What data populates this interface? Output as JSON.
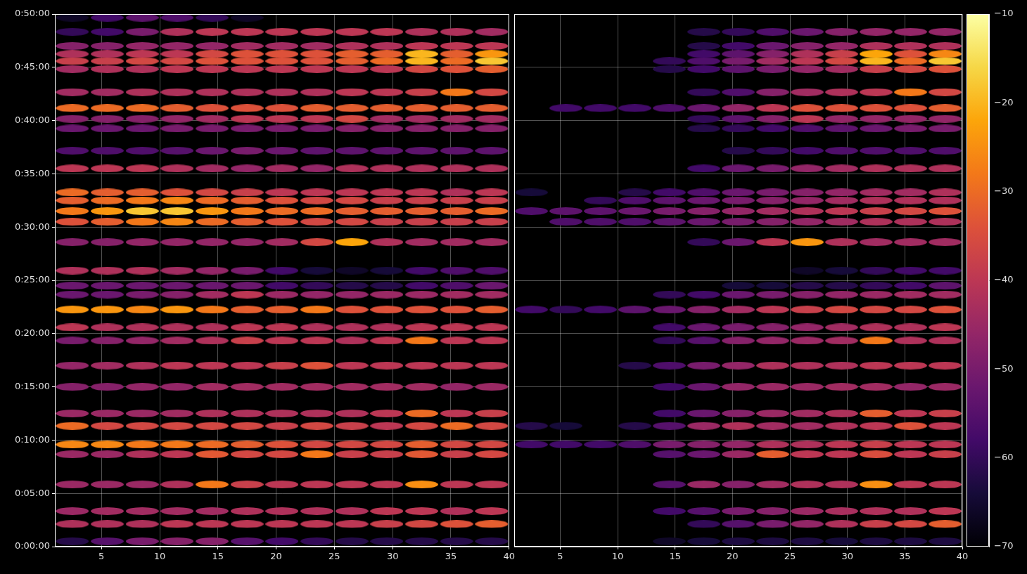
{
  "chart_data": [
    {
      "type": "heatmap",
      "grid": true,
      "xlim": [
        1,
        40
      ],
      "xticks": [
        5,
        10,
        15,
        20,
        25,
        30,
        35,
        40
      ],
      "ylim": [
        0,
        3000
      ],
      "yticks": [
        {
          "value": 0,
          "label": "0:00:00"
        },
        {
          "value": 300,
          "label": "0:05:00"
        },
        {
          "value": 600,
          "label": "0:10:00"
        },
        {
          "value": 900,
          "label": "0:15:00"
        },
        {
          "value": 1200,
          "label": "0:20:00"
        },
        {
          "value": 1500,
          "label": "0:25:00"
        },
        {
          "value": 1800,
          "label": "0:30:00"
        },
        {
          "value": 2100,
          "label": "0:35:00"
        },
        {
          "value": 2400,
          "label": "0:40:00"
        },
        {
          "value": 2700,
          "label": "0:45:00"
        },
        {
          "value": 3000,
          "label": "0:50:00"
        }
      ],
      "x": [
        2.5,
        5.5,
        8.5,
        11.5,
        14.5,
        17.5,
        20.5,
        23.5,
        26.5,
        29.5,
        32.5,
        35.5,
        38.5
      ],
      "y": [
        30,
        127,
        200,
        350,
        520,
        575,
        680,
        750,
        900,
        1020,
        1160,
        1235,
        1335,
        1420,
        1470,
        1555,
        1715,
        1830,
        1890,
        1950,
        1995,
        2130,
        2230,
        2355,
        2410,
        2470,
        2560,
        2690,
        2735,
        2775,
        2820,
        2900,
        2980
      ],
      "cells": [
        [
          -62,
          -55,
          -50,
          -48,
          -48,
          -55,
          -58,
          -60,
          -62,
          -62,
          -62,
          -62,
          -62
        ],
        [
          -42,
          -42,
          -42,
          -40,
          -40,
          -40,
          -40,
          -40,
          -40,
          -38,
          -36,
          -34,
          -32
        ],
        [
          -45,
          -44,
          -44,
          -44,
          -44,
          -42,
          -42,
          -42,
          -42,
          -40,
          -40,
          -42,
          -40
        ],
        [
          -45,
          -45,
          -45,
          -42,
          -28,
          -38,
          -40,
          -40,
          -40,
          -40,
          -25,
          -40,
          -40
        ],
        [
          -45,
          -45,
          -42,
          -40,
          -33,
          -36,
          -36,
          -28,
          -38,
          -38,
          -33,
          -38,
          -36
        ],
        [
          -26,
          -26,
          -28,
          -28,
          -30,
          -32,
          -34,
          -36,
          -36,
          -36,
          -32,
          -36,
          -36
        ],
        [
          -30,
          -36,
          -36,
          -36,
          -36,
          -36,
          -38,
          -36,
          -38,
          -40,
          -36,
          -30,
          -36
        ],
        [
          -45,
          -45,
          -45,
          -44,
          -42,
          -42,
          -42,
          -42,
          -42,
          -40,
          -30,
          -40,
          -38
        ],
        [
          -48,
          -48,
          -46,
          -46,
          -44,
          -44,
          -44,
          -44,
          -44,
          -44,
          -44,
          -46,
          -45
        ],
        [
          -46,
          -44,
          -42,
          -40,
          -40,
          -40,
          -38,
          -34,
          -40,
          -40,
          -40,
          -40,
          -40
        ],
        [
          -50,
          -48,
          -46,
          -44,
          -42,
          -38,
          -40,
          -40,
          -42,
          -40,
          -28,
          -40,
          -40
        ],
        [
          -40,
          -42,
          -42,
          -42,
          -42,
          -40,
          -40,
          -42,
          -42,
          -42,
          -40,
          -40,
          -40
        ],
        [
          -24,
          -24,
          -26,
          -24,
          -28,
          -32,
          -32,
          -28,
          -34,
          -34,
          -34,
          -34,
          -32
        ],
        [
          -52,
          -52,
          -50,
          -48,
          -44,
          -40,
          -45,
          -46,
          -46,
          -45,
          -45,
          -44,
          -44
        ],
        [
          -52,
          -52,
          -52,
          -52,
          -52,
          -52,
          -58,
          -60,
          -62,
          -62,
          -58,
          -56,
          -52
        ],
        [
          -42,
          -42,
          -42,
          -44,
          -46,
          -50,
          -58,
          -64,
          -66,
          -64,
          -58,
          -56,
          -56
        ],
        [
          -48,
          -48,
          -46,
          -46,
          -46,
          -46,
          -44,
          -36,
          -22,
          -42,
          -44,
          -44,
          -44
        ],
        [
          -34,
          -32,
          -28,
          -26,
          -30,
          -32,
          -34,
          -36,
          -36,
          -38,
          -38,
          -38,
          -38
        ],
        [
          -28,
          -24,
          -18,
          -18,
          -24,
          -28,
          -30,
          -30,
          -32,
          -32,
          -32,
          -32,
          -30
        ],
        [
          -32,
          -30,
          -28,
          -26,
          -30,
          -32,
          -34,
          -36,
          -36,
          -38,
          -38,
          -38,
          -38
        ],
        [
          -30,
          -32,
          -32,
          -34,
          -36,
          -38,
          -40,
          -40,
          -40,
          -40,
          -40,
          -42,
          -40
        ],
        [
          -40,
          -40,
          -40,
          -42,
          -44,
          -46,
          -44,
          -46,
          -42,
          -42,
          -42,
          -42,
          -42
        ],
        [
          -56,
          -56,
          -56,
          -55,
          -52,
          -50,
          -52,
          -54,
          -54,
          -54,
          -54,
          -54,
          -54
        ],
        [
          -52,
          -52,
          -52,
          -50,
          -50,
          -50,
          -50,
          -50,
          -48,
          -48,
          -48,
          -48,
          -48
        ],
        [
          -48,
          -48,
          -48,
          -46,
          -44,
          -40,
          -40,
          -40,
          -36,
          -44,
          -44,
          -44,
          -44
        ],
        [
          -30,
          -30,
          -30,
          -32,
          -34,
          -34,
          -34,
          -32,
          -32,
          -32,
          -32,
          -32,
          -32
        ],
        [
          -44,
          -44,
          -42,
          -42,
          -42,
          -42,
          -42,
          -42,
          -40,
          -40,
          -38,
          -28,
          -36
        ],
        [
          -44,
          -42,
          -42,
          -40,
          -40,
          -40,
          -40,
          -40,
          -40,
          -40,
          -36,
          -34,
          -32
        ],
        [
          -38,
          -38,
          -36,
          -36,
          -34,
          -34,
          -34,
          -34,
          -32,
          -30,
          -20,
          -30,
          -18
        ],
        [
          -42,
          -42,
          -40,
          -40,
          -36,
          -34,
          -34,
          -34,
          -32,
          -32,
          -20,
          -32,
          -24
        ],
        [
          -48,
          -48,
          -46,
          -46,
          -46,
          -44,
          -44,
          -44,
          -42,
          -42,
          -40,
          -40,
          -40
        ],
        [
          -60,
          -58,
          -50,
          -42,
          -40,
          -40,
          -40,
          -40,
          -40,
          -40,
          -42,
          -42,
          -44
        ],
        [
          -66,
          -58,
          -54,
          -56,
          -60,
          -66,
          null,
          null,
          null,
          null,
          null,
          null,
          null
        ]
      ]
    },
    {
      "type": "heatmap",
      "grid": true,
      "tick_labels": "x",
      "xlim": [
        1,
        40
      ],
      "xticks": [
        5,
        10,
        15,
        20,
        25,
        30,
        35,
        40
      ],
      "ylim": [
        0,
        3000
      ],
      "yticks": [
        {
          "value": 0,
          "label": "0:00:00"
        },
        {
          "value": 300,
          "label": "0:05:00"
        },
        {
          "value": 600,
          "label": "0:10:00"
        },
        {
          "value": 900,
          "label": "0:15:00"
        },
        {
          "value": 1200,
          "label": "0:20:00"
        },
        {
          "value": 1500,
          "label": "0:25:00"
        },
        {
          "value": 1800,
          "label": "0:30:00"
        },
        {
          "value": 2100,
          "label": "0:35:00"
        },
        {
          "value": 2400,
          "label": "0:40:00"
        },
        {
          "value": 2700,
          "label": "0:45:00"
        },
        {
          "value": 3000,
          "label": "0:50:00"
        }
      ],
      "x": [
        2.5,
        5.5,
        8.5,
        11.5,
        14.5,
        17.5,
        20.5,
        23.5,
        26.5,
        29.5,
        32.5,
        35.5,
        38.5
      ],
      "y": [
        30,
        127,
        200,
        350,
        520,
        575,
        680,
        750,
        900,
        1020,
        1160,
        1235,
        1335,
        1420,
        1470,
        1555,
        1715,
        1830,
        1890,
        1950,
        1995,
        2130,
        2230,
        2355,
        2410,
        2470,
        2560,
        2690,
        2735,
        2775,
        2820,
        2900,
        2980
      ],
      "cells": [
        [
          null,
          null,
          null,
          null,
          -66,
          -64,
          -63,
          -63,
          -63,
          -64,
          -63,
          -63,
          -63
        ],
        [
          null,
          null,
          null,
          null,
          null,
          -60,
          -55,
          -50,
          -46,
          -42,
          -38,
          -36,
          -32
        ],
        [
          null,
          null,
          null,
          null,
          -58,
          -55,
          -50,
          -48,
          -45,
          -43,
          -42,
          -42,
          -40
        ],
        [
          null,
          null,
          null,
          null,
          -55,
          -45,
          -48,
          -44,
          -42,
          -42,
          -25,
          -40,
          -40
        ],
        [
          null,
          null,
          null,
          null,
          -55,
          -52,
          -45,
          -32,
          -40,
          -40,
          -35,
          -40,
          -38
        ],
        [
          -58,
          -58,
          -58,
          -56,
          -50,
          -48,
          -46,
          -42,
          -42,
          -40,
          -38,
          -40,
          -40
        ],
        [
          -62,
          -64,
          null,
          -62,
          -55,
          -45,
          -42,
          -44,
          -44,
          -42,
          -40,
          -34,
          -40
        ],
        [
          null,
          null,
          null,
          null,
          -58,
          -52,
          -48,
          -45,
          -44,
          -42,
          -32,
          -40,
          -38
        ],
        [
          null,
          null,
          null,
          null,
          -58,
          -52,
          -46,
          -45,
          -45,
          -44,
          -44,
          -46,
          -45
        ],
        [
          null,
          null,
          null,
          -62,
          -56,
          -50,
          -46,
          -42,
          -42,
          -42,
          -40,
          -40,
          -40
        ],
        [
          null,
          null,
          null,
          null,
          -60,
          -55,
          -48,
          -46,
          -45,
          -44,
          -28,
          -42,
          -42
        ],
        [
          null,
          null,
          null,
          null,
          -58,
          -52,
          -50,
          -48,
          -46,
          -44,
          -42,
          -42,
          -40
        ],
        [
          -58,
          -60,
          -58,
          -54,
          -52,
          -48,
          -44,
          -40,
          -38,
          -36,
          -36,
          -36,
          -34
        ],
        [
          null,
          null,
          null,
          null,
          -60,
          -58,
          -52,
          -50,
          -48,
          -46,
          -45,
          -44,
          -44
        ],
        [
          null,
          null,
          null,
          null,
          null,
          null,
          -64,
          -64,
          -62,
          -62,
          -60,
          -58,
          -54
        ],
        [
          null,
          null,
          null,
          null,
          null,
          null,
          null,
          null,
          -66,
          -64,
          -60,
          -58,
          -58
        ],
        [
          null,
          null,
          null,
          null,
          null,
          -60,
          -52,
          -40,
          -24,
          -42,
          -44,
          -44,
          -44
        ],
        [
          null,
          -56,
          -56,
          -56,
          -54,
          -52,
          -50,
          -48,
          -46,
          -44,
          -42,
          -42,
          -42
        ],
        [
          -56,
          -54,
          -54,
          -52,
          -50,
          -48,
          -46,
          -44,
          -42,
          -40,
          -38,
          -36,
          -34
        ],
        [
          null,
          null,
          -60,
          -56,
          -54,
          -52,
          -50,
          -48,
          -46,
          -44,
          -42,
          -42,
          -42
        ],
        [
          -64,
          null,
          null,
          -62,
          -58,
          -56,
          -52,
          -50,
          -48,
          -46,
          -44,
          -44,
          -42
        ],
        [
          null,
          null,
          null,
          null,
          null,
          -58,
          -52,
          -50,
          -46,
          -44,
          -42,
          -42,
          -42
        ],
        [
          null,
          null,
          null,
          null,
          null,
          null,
          -62,
          -60,
          -58,
          -56,
          -56,
          -56,
          -56
        ],
        [
          null,
          null,
          null,
          null,
          null,
          -62,
          -60,
          -58,
          -56,
          -54,
          -52,
          -50,
          -50
        ],
        [
          null,
          null,
          null,
          null,
          null,
          -60,
          -54,
          -48,
          -40,
          -46,
          -46,
          -46,
          -46
        ],
        [
          null,
          -58,
          -58,
          -58,
          -56,
          -52,
          -46,
          -40,
          -34,
          -34,
          -34,
          -34,
          -32
        ],
        [
          null,
          null,
          null,
          null,
          null,
          -60,
          -56,
          -48,
          -44,
          -42,
          -40,
          -28,
          -36
        ],
        [
          null,
          null,
          null,
          null,
          -62,
          -58,
          -54,
          -50,
          -46,
          -44,
          -38,
          -36,
          -34
        ],
        [
          null,
          null,
          null,
          null,
          -60,
          -56,
          -50,
          -44,
          -40,
          -36,
          -20,
          -30,
          -18
        ],
        [
          null,
          null,
          null,
          null,
          null,
          -58,
          -54,
          -48,
          -42,
          -38,
          -22,
          -34,
          -26
        ],
        [
          null,
          null,
          null,
          null,
          null,
          -62,
          -58,
          -52,
          -48,
          -46,
          -42,
          -42,
          -42
        ],
        [
          null,
          null,
          null,
          null,
          null,
          -62,
          -60,
          -56,
          -52,
          -48,
          -46,
          -46,
          -46
        ],
        [
          null,
          null,
          null,
          null,
          null,
          null,
          null,
          null,
          null,
          null,
          null,
          null,
          null
        ]
      ],
      "colorbar": {
        "range": [
          -70,
          -10
        ],
        "ticks": [
          {
            "value": -70,
            "label": "−70"
          },
          {
            "value": -60,
            "label": "−60"
          },
          {
            "value": -50,
            "label": "−50"
          },
          {
            "value": -40,
            "label": "−40"
          },
          {
            "value": -30,
            "label": "−30"
          },
          {
            "value": -20,
            "label": "−20"
          },
          {
            "value": -10,
            "label": "−10"
          }
        ]
      }
    }
  ]
}
